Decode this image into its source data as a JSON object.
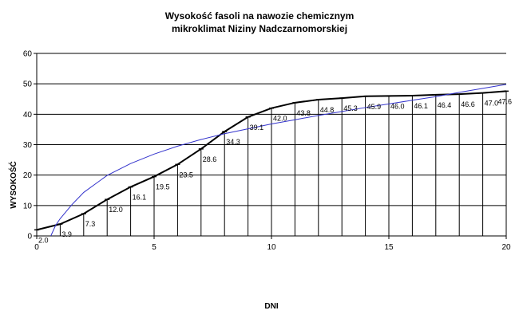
{
  "chart_data": {
    "type": "line",
    "title": "Wysokość fasoli na nawozie chemicznym",
    "subtitle": "mikroklimat Niziny Nadczarnomorskiej",
    "xlabel": "DNI",
    "ylabel": "WYSOKOŚĆ",
    "xlim": [
      0,
      20
    ],
    "ylim": [
      0,
      60
    ],
    "xticks": [
      0,
      5,
      10,
      15,
      20
    ],
    "yticks": [
      0,
      10,
      20,
      30,
      40,
      50,
      60
    ],
    "grid": "horizontal",
    "legend": "none",
    "series": [
      {
        "color": "#000000",
        "marker": "tick",
        "show_data_labels": true,
        "x": [
          0,
          1,
          2,
          3,
          4,
          5,
          6,
          7,
          8,
          9,
          10,
          11,
          12,
          13,
          14,
          15,
          16,
          17,
          18,
          19,
          20
        ],
        "y": [
          2.0,
          3.9,
          7.3,
          12.0,
          16.1,
          19.5,
          23.5,
          28.6,
          34.3,
          39.1,
          42.0,
          43.8,
          44.8,
          45.3,
          45.9,
          46.0,
          46.1,
          46.4,
          46.6,
          47.0,
          47.6
        ],
        "labels": [
          "2.0",
          "3.9",
          "7.3",
          "12.0",
          "16.1",
          "19.5",
          "23.5",
          "28.6",
          "34.3",
          "39.1",
          "42.0",
          "43.8",
          "44.8",
          "45.3",
          "45.9",
          "46.0",
          "46.1",
          "46.4",
          "46.6",
          "47.0",
          "47.6"
        ]
      },
      {
        "color": "#3333cc",
        "type": "trendline",
        "x": [
          0.6,
          0.8,
          1,
          1.5,
          2,
          3,
          4,
          5,
          6,
          7,
          8,
          9,
          10,
          11,
          12,
          13,
          14,
          15,
          16,
          17,
          18,
          19,
          20
        ],
        "y": [
          0,
          3.4,
          5.7,
          10.3,
          14.3,
          19.9,
          23.8,
          26.9,
          29.5,
          31.7,
          33.6,
          35.2,
          36.8,
          38.2,
          39.6,
          40.9,
          42.2,
          43.4,
          44.6,
          45.8,
          47.2,
          48.5,
          49.8
        ]
      }
    ]
  }
}
